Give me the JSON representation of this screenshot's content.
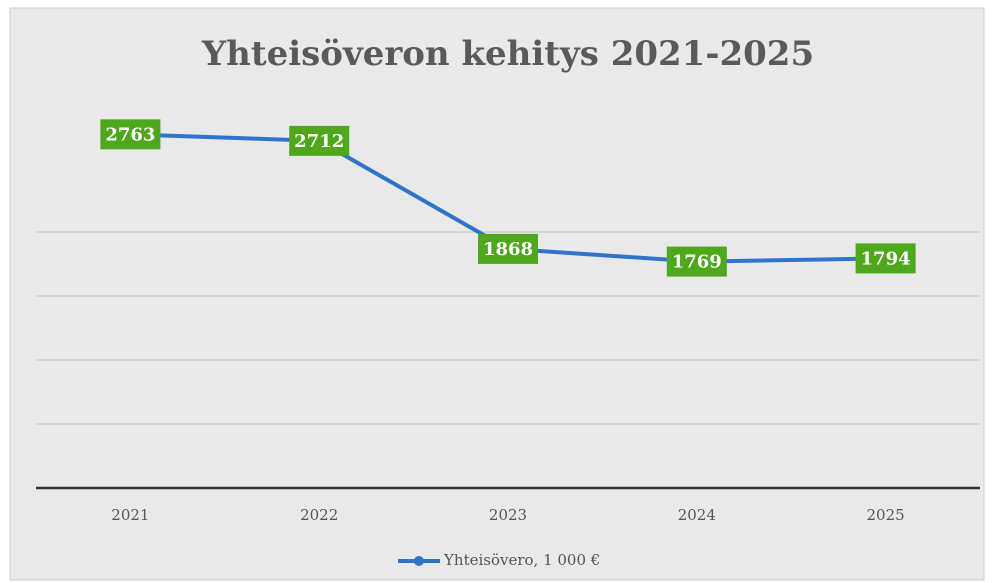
{
  "chart_data": {
    "type": "line",
    "title": "Yhteisöveron kehitys 2021-2025",
    "categories": [
      "2021",
      "2022",
      "2023",
      "2024",
      "2025"
    ],
    "series": [
      {
        "name": "Yhteisövero, 1 000 €",
        "color": "#2f74c9",
        "values": [
          2763,
          2712,
          1868,
          1769,
          1794
        ]
      }
    ],
    "label_color": "#4fa81c",
    "ylim": [
      0,
      3000
    ],
    "yticks": [
      0,
      500,
      1000,
      1500,
      2000
    ],
    "grid": true,
    "legend": "bottom"
  }
}
